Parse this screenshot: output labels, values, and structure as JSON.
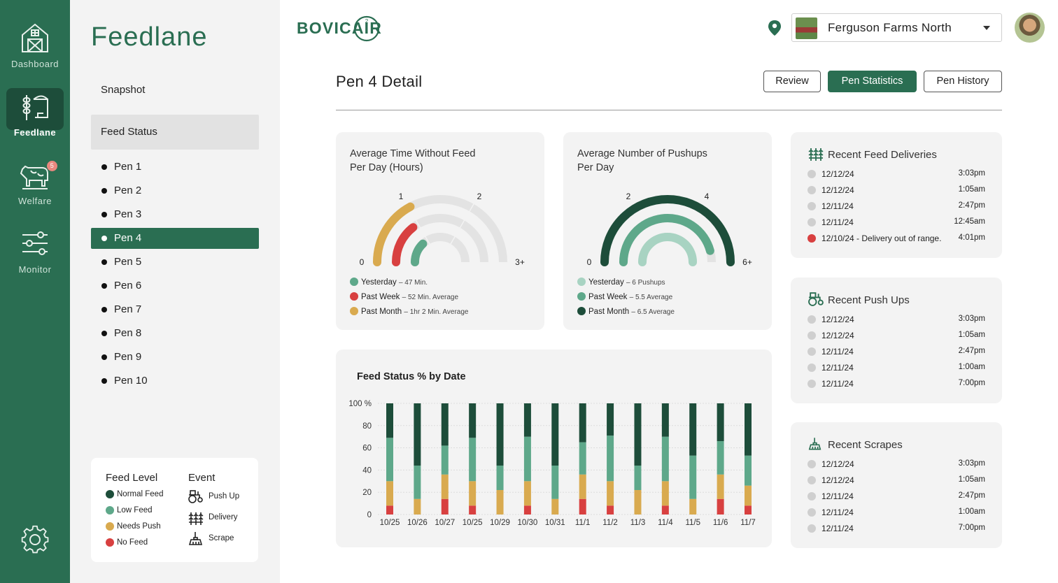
{
  "rail": {
    "items": [
      {
        "label": "Dashboard",
        "icon": "barn-icon"
      },
      {
        "label": "Feedlane",
        "icon": "feed-icon"
      },
      {
        "label": "Welfare",
        "icon": "cow-icon",
        "badge": "5"
      },
      {
        "label": "Monitor",
        "icon": "sliders-icon"
      }
    ],
    "settings_icon": "gear-icon"
  },
  "subnav": {
    "title": "Feedlane",
    "snapshot": "Snapshot",
    "feed_status": "Feed Status",
    "pens": [
      "Pen 1",
      "Pen 2",
      "Pen 3",
      "Pen 4",
      "Pen 5",
      "Pen 6",
      "Pen 7",
      "Pen 8",
      "Pen 9",
      "Pen 10"
    ],
    "active_pen": 3
  },
  "legend": {
    "feed_level_title": "Feed Level",
    "levels": [
      {
        "label": "Normal Feed",
        "color": "#1d4d3a"
      },
      {
        "label": "Low Feed",
        "color": "#5ea88a"
      },
      {
        "label": "Needs Push",
        "color": "#d9aa4f"
      },
      {
        "label": "No Feed",
        "color": "#d84040"
      }
    ],
    "event_title": "Event",
    "events": [
      {
        "label": "Push Up",
        "icon": "tractor-icon"
      },
      {
        "label": "Delivery",
        "icon": "wheat-icon"
      },
      {
        "label": "Scrape",
        "icon": "scraper-icon"
      }
    ]
  },
  "header": {
    "logo": "BOVICAIR",
    "farm": "Ferguson Farms North",
    "location_icon": "location-pin-icon"
  },
  "detail": {
    "title": "Pen 4 Detail",
    "tabs": [
      "Review",
      "Pen Statistics",
      "Pen History"
    ],
    "active_tab": 1
  },
  "gauge1": {
    "title": "Average Time Without Feed\nPer Day (Hours)",
    "ticks": [
      "0",
      "1",
      "2",
      "3+"
    ],
    "max": 3,
    "series": [
      {
        "label": "Yesterday",
        "detail": "47 Min.",
        "value": 0.78,
        "color": "#5ea88a"
      },
      {
        "label": "Past Week",
        "detail": "52 Min. Average",
        "value": 0.87,
        "color": "#d84040"
      },
      {
        "label": "Past Month",
        "detail": "1hr 2 Min. Average",
        "value": 1.03,
        "color": "#d9aa4f"
      }
    ]
  },
  "gauge2": {
    "title": "Average Number of Pushups\nPer Day",
    "ticks": [
      "0",
      "2",
      "4",
      "6+"
    ],
    "max": 6,
    "series": [
      {
        "label": "Yesterday",
        "detail": "6 Pushups",
        "value": 6,
        "color": "#a8d3c2"
      },
      {
        "label": "Past Week",
        "detail": "5.5 Average",
        "value": 5.5,
        "color": "#5ea88a"
      },
      {
        "label": "Past Month",
        "detail": "6.5 Average",
        "value": 6.5,
        "color": "#1d4d3a"
      }
    ]
  },
  "deliveries": {
    "title": "Recent Feed Deliveries",
    "icon": "wheat-icon",
    "rows": [
      {
        "date": "12/12/24",
        "time": "3:03pm",
        "color": "#cfcfcf"
      },
      {
        "date": "12/12/24",
        "time": "1:05am",
        "color": "#cfcfcf"
      },
      {
        "date": "12/11/24",
        "time": "2:47pm",
        "color": "#cfcfcf"
      },
      {
        "date": "12/11/24",
        "time": "12:45am",
        "color": "#cfcfcf"
      },
      {
        "date": "12/10/24 - Delivery out of range.",
        "time": "4:01pm",
        "color": "#d84040"
      }
    ]
  },
  "pushups": {
    "title": "Recent Push Ups",
    "icon": "tractor-icon",
    "rows": [
      {
        "date": "12/12/24",
        "time": "3:03pm"
      },
      {
        "date": "12/12/24",
        "time": "1:05am"
      },
      {
        "date": "12/11/24",
        "time": "2:47pm"
      },
      {
        "date": "12/11/24",
        "time": "1:00am"
      },
      {
        "date": "12/11/24",
        "time": "7:00pm"
      }
    ]
  },
  "scrapes": {
    "title": "Recent Scrapes",
    "icon": "scraper-icon",
    "rows": [
      {
        "date": "12/12/24",
        "time": "3:03pm"
      },
      {
        "date": "12/12/24",
        "time": "1:05am"
      },
      {
        "date": "12/11/24",
        "time": "2:47pm"
      },
      {
        "date": "12/11/24",
        "time": "1:00am"
      },
      {
        "date": "12/11/24",
        "time": "7:00pm"
      }
    ]
  },
  "chart_data": {
    "type": "bar",
    "title": "Feed Status % by Date",
    "stacked": true,
    "y_ticks": [
      "100 %",
      "80",
      "60",
      "40",
      "20",
      "0"
    ],
    "ylim": [
      0,
      100
    ],
    "grid": true,
    "categories": [
      "10/25",
      "10/26",
      "10/27",
      "10/25",
      "10/29",
      "10/30",
      "10/31",
      "11/1",
      "11/2",
      "11/3",
      "11/4",
      "11/5",
      "11/6",
      "11/7"
    ],
    "series": [
      {
        "name": "No Feed",
        "color": "#d84040",
        "values": [
          8,
          0,
          14,
          8,
          0,
          8,
          0,
          14,
          8,
          0,
          8,
          0,
          14,
          8
        ]
      },
      {
        "name": "Needs Push",
        "color": "#d9aa4f",
        "values": [
          22,
          14,
          22,
          22,
          22,
          22,
          14,
          22,
          22,
          22,
          22,
          14,
          22,
          18
        ]
      },
      {
        "name": "Low Feed",
        "color": "#5ea88a",
        "values": [
          39,
          30,
          26,
          39,
          22,
          40,
          30,
          29,
          41,
          22,
          40,
          39,
          30,
          27
        ]
      },
      {
        "name": "Normal Feed",
        "color": "#1d4d3a",
        "values": [
          31,
          56,
          38,
          31,
          56,
          30,
          56,
          35,
          29,
          56,
          30,
          47,
          34,
          47
        ]
      }
    ]
  }
}
